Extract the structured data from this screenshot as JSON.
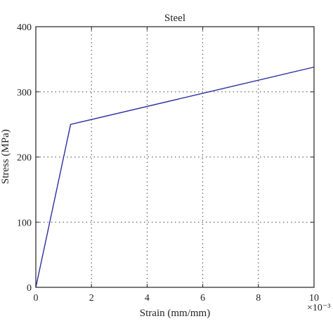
{
  "chart_data": {
    "type": "line",
    "title": "Steel",
    "xlabel": "Strain (mm/mm)",
    "ylabel": "Stress (MPa)",
    "x_multiplier_label": "×10⁻³",
    "xlim": [
      0,
      10
    ],
    "ylim": [
      0,
      400
    ],
    "x_ticks": [
      "0",
      "2",
      "4",
      "6",
      "8",
      "10"
    ],
    "y_ticks": [
      "0",
      "100",
      "200",
      "300",
      "400"
    ],
    "grid": true,
    "line_color": "#2b2fa0",
    "series": [
      {
        "x": [
          0,
          1.25,
          10
        ],
        "y": [
          0,
          250,
          338
        ]
      }
    ]
  }
}
